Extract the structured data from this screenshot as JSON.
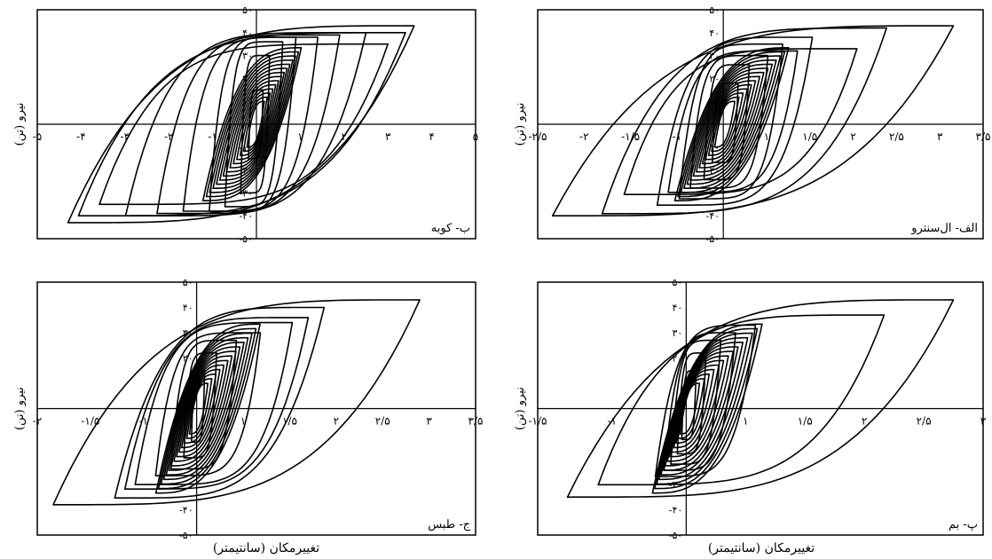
{
  "chart_data": [
    {
      "type": "line",
      "panel": "top-left",
      "label": "ب- کوبه",
      "ylabel": "نیرو (تن)",
      "xlabel": "",
      "xlim": [
        -5,
        5
      ],
      "ylim": [
        -50,
        50
      ],
      "x_ticks": [
        "-۵",
        "-۴",
        "-۳",
        "-۲",
        "-۱",
        "۱",
        "۲",
        "۳",
        "۴",
        "۵"
      ],
      "y_ticks": [
        "۵۰",
        "۴۰",
        "۳۰",
        "۲۰",
        "۱۰",
        "-۱۰",
        "-۲۰",
        "-۳۰",
        "-۴۰",
        "-۵۰"
      ],
      "envelope": {
        "max_displacement": 3.6,
        "max_force": 43,
        "min_displacement": -4.3,
        "min_force": -43
      },
      "loops": [
        [
          3.6,
          43
        ],
        [
          3.4,
          40
        ],
        [
          3.0,
          35
        ],
        [
          2.5,
          40
        ],
        [
          1.9,
          39
        ],
        [
          1.4,
          38
        ],
        [
          0.9,
          38
        ],
        [
          0.6,
          36
        ],
        [
          0.3,
          30
        ],
        [
          0.15,
          15
        ]
      ]
    },
    {
      "type": "line",
      "panel": "top-right",
      "label": "الف- ال‌سنترو",
      "ylabel": "نیرو (تن)",
      "xlabel": "",
      "xlim": [
        -2.5,
        3.5
      ],
      "ylim": [
        -50,
        50
      ],
      "x_ticks": [
        "-۲/۵",
        "-۲",
        "-۱/۵",
        "-۱",
        "۱",
        "۱/۵",
        "۲",
        "۲/۵",
        "۳",
        "۳/۵"
      ],
      "y_ticks": [
        "۵۰",
        "۴۰",
        "۳۰",
        "۲۰",
        "۱۰",
        "-۱۰",
        "-۲۰",
        "-۳۰",
        "-۴۰",
        "-۵۰"
      ],
      "envelope": {
        "max_displacement": 3.1,
        "max_force": 43,
        "min_displacement": -2.3,
        "min_force": -40
      },
      "loops": [
        [
          3.1,
          43
        ],
        [
          2.2,
          42
        ],
        [
          1.8,
          33
        ],
        [
          1.2,
          38
        ],
        [
          1.0,
          32
        ],
        [
          0.8,
          35
        ],
        [
          0.6,
          30
        ],
        [
          0.35,
          26
        ],
        [
          0.2,
          18
        ]
      ]
    },
    {
      "type": "line",
      "panel": "bottom-left",
      "label": "ج- طبس",
      "ylabel": "نیرو (تن)",
      "xlabel": "تغییرمکان (سانتیمتر)",
      "xlim": [
        -2,
        3.5
      ],
      "ylim": [
        -50,
        50
      ],
      "x_ticks": [
        "-۲",
        "-۱/۵",
        "-۱",
        "۱",
        "۱/۵",
        "۲",
        "۲/۵",
        "۳",
        "۳/۵"
      ],
      "y_ticks": [
        "۵۰",
        "۴۰",
        "۳۰",
        "۲۰",
        "-۴۰",
        "-۵۰"
      ],
      "envelope": {
        "max_displacement": 2.8,
        "max_force": 43,
        "min_displacement": -1.8,
        "min_force": -38
      },
      "loops": [
        [
          2.8,
          43
        ],
        [
          1.6,
          40
        ],
        [
          1.4,
          36
        ],
        [
          1.2,
          34
        ],
        [
          0.8,
          30
        ],
        [
          0.5,
          27
        ],
        [
          0.25,
          22
        ],
        [
          0.1,
          15
        ]
      ]
    },
    {
      "type": "line",
      "panel": "bottom-right",
      "label": "پ- بم",
      "ylabel": "نیرو (تن)",
      "xlabel": "تغییرمکان (سانتیمتر)",
      "xlim": [
        -1.5,
        3
      ],
      "ylim": [
        -50,
        50
      ],
      "x_ticks": [
        "-۱/۵",
        "-۱",
        "۱",
        "۱/۵",
        "۲",
        "۲/۵",
        "۳"
      ],
      "y_ticks": [
        "۵۰",
        "۴۰",
        "۳۰",
        "۲۰",
        "-۳۰",
        "-۴۰",
        "-۵۰"
      ],
      "envelope": {
        "max_displacement": 2.7,
        "max_force": 43,
        "min_displacement": -1.2,
        "min_force": -35
      },
      "loops": [
        [
          2.7,
          43
        ],
        [
          2.0,
          37
        ],
        [
          0.7,
          33
        ],
        [
          0.5,
          30
        ],
        [
          0.35,
          27
        ],
        [
          0.2,
          22
        ],
        [
          0.1,
          15
        ]
      ]
    }
  ]
}
